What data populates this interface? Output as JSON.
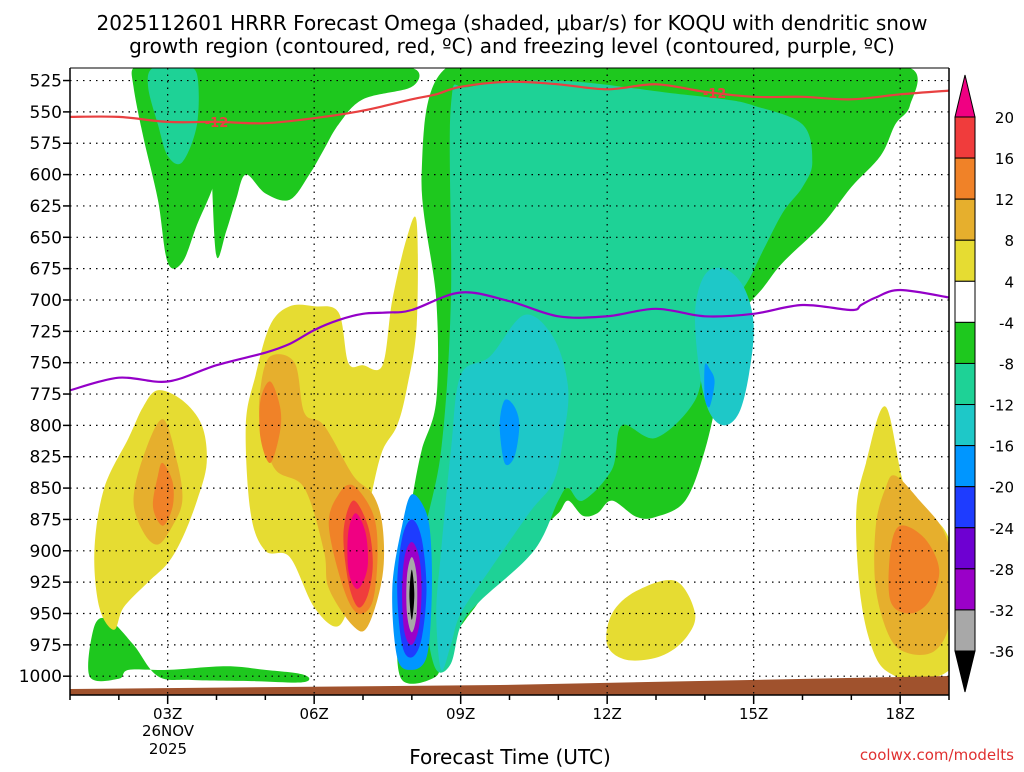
{
  "chart_data": {
    "type": "heatmap",
    "title_line1": "2025112601 HRRR Forecast Omega (shaded, μbar/s) for KOQU with dendritic snow",
    "title_line2": "growth region (contoured, red, ºC) and freezing level (contoured, purple, ºC)",
    "xlabel": "Forecast Time (UTC)",
    "date_label_day": "26NOV",
    "date_label_year": "2025",
    "credit": "coolwx.com/modelts",
    "x_range_hours": [
      1,
      19
    ],
    "x_ticks": [
      {
        "hour": 3,
        "label": "03Z"
      },
      {
        "hour": 6,
        "label": "06Z"
      },
      {
        "hour": 9,
        "label": "09Z"
      },
      {
        "hour": 12,
        "label": "12Z"
      },
      {
        "hour": 15,
        "label": "15Z"
      },
      {
        "hour": 18,
        "label": "18Z"
      }
    ],
    "y_range_hpa": [
      1015,
      515
    ],
    "y_ticks": [
      525,
      550,
      575,
      600,
      625,
      650,
      675,
      700,
      725,
      750,
      775,
      800,
      825,
      850,
      875,
      900,
      925,
      950,
      975,
      1000
    ],
    "colorbar": {
      "levels": [
        -36,
        -32,
        -28,
        -24,
        -20,
        -16,
        -12,
        -8,
        -4,
        4,
        8,
        12,
        16,
        20
      ],
      "colors": [
        "#000000",
        "#a8a8a8",
        "#9a00c8",
        "#6e00d2",
        "#1e3cff",
        "#0096ff",
        "#1ec8c8",
        "#1ed296",
        "#1ec81e",
        "#ffffff",
        "#e6dc32",
        "#e6af2d",
        "#f08228",
        "#f03c3c",
        "#f00082"
      ]
    },
    "series": [
      {
        "name": "freezing level 0ºC",
        "color": "#9400c8",
        "x": [
          1,
          2,
          3,
          4,
          5,
          5.5,
          6,
          6.5,
          7,
          7.5,
          8,
          9,
          10,
          11,
          12,
          13,
          14,
          15,
          16,
          17,
          17.2,
          17.5,
          18,
          19
        ],
        "p": [
          772,
          762,
          765,
          752,
          742,
          735,
          724,
          716,
          711,
          710,
          708,
          694,
          701,
          713,
          713,
          707,
          713,
          711,
          704,
          708,
          704,
          698,
          692,
          698
        ]
      },
      {
        "name": "dendritic growth -12ºC",
        "color": "#e84040",
        "label": "-12",
        "label_hour": 4.0,
        "label_hour_2": 14.2,
        "x": [
          1,
          2,
          3,
          4,
          5,
          6,
          7,
          8,
          8.5,
          9,
          10,
          11,
          12,
          13,
          14,
          15,
          16,
          17,
          18,
          19
        ],
        "p": [
          554,
          554,
          558,
          558,
          559,
          555,
          549,
          540,
          536,
          530,
          526,
          528,
          532,
          528,
          534,
          538,
          538,
          540,
          536,
          533
        ]
      }
    ],
    "regions": [
      {
        "name": "ascent-green-left",
        "level": -4,
        "hours": [
          2.3,
          2.7,
          3.0,
          3.3,
          3.5,
          3.8,
          4.0,
          4.1,
          4.0,
          3.6,
          3.3,
          3.0,
          2.8,
          2.5,
          2.3
        ],
        "pressures": [
          515,
          515,
          515,
          515,
          515,
          515,
          515,
          550,
          600,
          640,
          670,
          670,
          620,
          570,
          530
        ]
      },
      {
        "name": "ascent-green-top",
        "level": -4,
        "hours": [
          3.8,
          6.5,
          8.0,
          8.0,
          7.0,
          6.5,
          6.2,
          5.9,
          5.5,
          5.0,
          4.6,
          4.4,
          4.2,
          4.0,
          3.9
        ],
        "pressures": [
          515,
          515,
          515,
          530,
          540,
          560,
          580,
          600,
          620,
          615,
          600,
          620,
          645,
          665,
          600
        ]
      },
      {
        "name": "ascent-green-main",
        "level": -4,
        "hours": [
          8.7,
          11.0,
          13.5,
          16.2,
          18.2,
          18.2,
          17.9,
          17.6,
          17.0,
          16.4,
          15.6,
          15.2,
          14.6,
          14.3,
          14.0,
          13.6,
          13.0,
          12.6,
          12.1,
          11.8,
          11.5,
          11.2,
          11.0,
          10.6,
          9.8,
          9.5,
          9.1,
          8.6,
          8.5,
          7.8,
          7.7,
          7.8,
          8.0,
          8.2,
          8.5,
          8.5,
          8.2
        ],
        "pressures": [
          515,
          515,
          515,
          515,
          515,
          545,
          560,
          585,
          610,
          640,
          670,
          690,
          720,
          770,
          820,
          860,
          873,
          873,
          860,
          870,
          872,
          860,
          870,
          880,
          880,
          930,
          955,
          980,
          1000,
          1003,
          960,
          910,
          860,
          820,
          780,
          700,
          600
        ]
      },
      {
        "name": "ascent-green-bottom",
        "level": -4,
        "hours": [
          2.2,
          3.0,
          4.2,
          5.0,
          5.7,
          5.9,
          5.7,
          4.8,
          3.5,
          2.8,
          2.3,
          1.8,
          1.5,
          1.4,
          2.0
        ],
        "pressures": [
          995,
          995,
          992,
          995,
          998,
          1002,
          1005,
          1004,
          1003,
          1000,
          975,
          955,
          960,
          1000,
          1002
        ]
      },
      {
        "name": "ascent-teal-main",
        "level": -8,
        "hours": [
          8.8,
          9.2,
          11.0,
          13.3,
          14.4,
          15.0,
          16.0,
          16.2,
          16.0,
          15.6,
          15.2,
          14.8,
          14.2,
          14.0,
          13.8,
          13.0,
          12.3,
          12.1,
          11.5,
          11.2,
          11.0,
          10.5,
          9.4,
          9.0,
          8.8,
          8.5,
          8.3,
          8.2,
          8.6,
          8.8
        ],
        "pressures": [
          545,
          530,
          525,
          535,
          540,
          545,
          560,
          590,
          610,
          630,
          660,
          690,
          715,
          740,
          780,
          810,
          800,
          835,
          860,
          850,
          860,
          900,
          940,
          960,
          990,
          995,
          960,
          900,
          820,
          700
        ]
      },
      {
        "name": "ascent-teal-upper-left",
        "level": -8,
        "hours": [
          2.7,
          3.3,
          3.6,
          3.6,
          3.3,
          3.0,
          2.8,
          2.6
        ],
        "pressures": [
          515,
          515,
          520,
          560,
          590,
          585,
          560,
          530
        ]
      },
      {
        "name": "ascent-cyan-core",
        "level": -12,
        "hours": [
          9.0,
          9.6,
          10.3,
          10.9,
          11.2,
          11.1,
          10.9,
          10.4,
          9.6,
          9.0,
          8.8,
          8.6,
          8.5,
          8.6,
          8.8
        ],
        "pressures": [
          760,
          745,
          712,
          730,
          770,
          810,
          845,
          870,
          915,
          950,
          975,
          995,
          950,
          900,
          820
        ]
      },
      {
        "name": "ascent-cyan-right",
        "level": -12,
        "hours": [
          14.0,
          14.4,
          14.8,
          15.0,
          14.9,
          14.7,
          14.4,
          14.1,
          13.9,
          13.8
        ],
        "pressures": [
          680,
          675,
          690,
          720,
          760,
          790,
          800,
          790,
          760,
          710
        ]
      },
      {
        "name": "ascent-blue-core",
        "level": -16,
        "hours": [
          8.0,
          8.3,
          8.4,
          8.4,
          8.3,
          8.0,
          7.7,
          7.6,
          7.8
        ],
        "pressures": [
          855,
          870,
          900,
          945,
          985,
          995,
          985,
          930,
          880
        ]
      },
      {
        "name": "ascent-blue-small",
        "level": -16,
        "hours": [
          9.9,
          10.1,
          10.2,
          10.1,
          9.9,
          9.8
        ],
        "pressures": [
          780,
          785,
          800,
          825,
          830,
          800
        ]
      },
      {
        "name": "ascent-blue-small-right",
        "level": -16,
        "hours": [
          14.0,
          14.1,
          14.2,
          14.1,
          14.0
        ],
        "pressures": [
          752,
          755,
          765,
          785,
          778
        ]
      },
      {
        "name": "ascent-navy-core",
        "level": -20,
        "hours": [
          8.0,
          8.2,
          8.3,
          8.2,
          8.0,
          7.8,
          7.7,
          7.8
        ],
        "pressures": [
          875,
          890,
          930,
          970,
          985,
          975,
          930,
          890
        ]
      },
      {
        "name": "ascent-violet-core",
        "level": -28,
        "hours": [
          8.0,
          8.15,
          8.2,
          8.15,
          8.0,
          7.85,
          7.8,
          7.85
        ],
        "pressures": [
          893,
          905,
          930,
          960,
          975,
          965,
          935,
          905
        ]
      },
      {
        "name": "ascent-gray-core",
        "level": -32,
        "hours": [
          8.0,
          8.1,
          8.1,
          8.0,
          7.9,
          7.9
        ],
        "pressures": [
          905,
          920,
          950,
          965,
          950,
          920
        ]
      },
      {
        "name": "ascent-black-core",
        "level": -36,
        "hours": [
          8.0,
          8.05,
          8.0,
          7.95
        ],
        "pressures": [
          915,
          935,
          955,
          935
        ]
      },
      {
        "name": "descent-yellow-a",
        "level": 4,
        "hours": [
          2.8,
          3.3,
          3.7,
          3.8,
          3.6,
          3.3,
          3.0,
          2.6,
          2.1,
          1.9,
          1.6,
          1.5,
          1.7,
          2.2,
          2.5
        ],
        "pressures": [
          772,
          780,
          800,
          830,
          860,
          890,
          910,
          925,
          945,
          963,
          945,
          900,
          850,
          810,
          785
        ]
      },
      {
        "name": "descent-yellow-b",
        "level": 4,
        "hours": [
          6.0,
          6.5,
          6.7,
          7.0,
          7.4,
          7.6,
          7.9,
          8.1,
          8.1,
          7.9,
          7.7,
          7.4,
          7.2,
          7.0,
          6.8,
          6.5,
          6.0,
          5.5,
          5.0,
          4.7,
          4.6,
          4.8,
          5.1,
          5.5
        ],
        "pressures": [
          705,
          710,
          750,
          752,
          752,
          700,
          650,
          638,
          720,
          770,
          800,
          820,
          850,
          890,
          930,
          960,
          945,
          905,
          900,
          870,
          800,
          760,
          720,
          705
        ]
      },
      {
        "name": "descent-yellow-c",
        "level": 4,
        "hours": [
          12.6,
          13.4,
          13.8,
          13.6,
          13.1,
          12.4,
          12.0,
          12.1
        ],
        "pressures": [
          932,
          924,
          950,
          970,
          984,
          987,
          975,
          950
        ]
      },
      {
        "name": "descent-yellow-d",
        "level": 4,
        "hours": [
          17.7,
          18.1,
          18.6,
          19.0,
          19.2,
          19.2,
          18.9,
          18.3,
          17.9,
          17.5,
          17.2,
          17.1,
          17.3
        ],
        "pressures": [
          785,
          850,
          870,
          890,
          930,
          980,
          998,
          1002,
          1000,
          985,
          940,
          870,
          830
        ]
      },
      {
        "name": "descent-orange-a",
        "level": 8,
        "hours": [
          2.9,
          3.2,
          3.3,
          3.1,
          2.8,
          2.5,
          2.3,
          2.5
        ],
        "pressures": [
          795,
          830,
          860,
          880,
          895,
          885,
          860,
          825
        ]
      },
      {
        "name": "descent-orange-b",
        "level": 8,
        "hours": [
          5.1,
          5.6,
          5.8,
          6.2,
          6.8,
          7.2,
          7.4,
          7.4,
          7.1,
          6.8,
          6.3,
          6.2,
          5.8,
          5.2,
          4.9,
          4.9
        ],
        "pressures": [
          745,
          750,
          790,
          800,
          840,
          855,
          880,
          920,
          960,
          960,
          930,
          900,
          850,
          835,
          800,
          770
        ]
      },
      {
        "name": "descent-orange-d",
        "level": 8,
        "hours": [
          17.9,
          18.4,
          18.9,
          19.1,
          19.0,
          18.7,
          18.2,
          17.8,
          17.5,
          17.5,
          17.7
        ],
        "pressures": [
          840,
          860,
          885,
          920,
          960,
          980,
          982,
          970,
          930,
          880,
          850
        ]
      },
      {
        "name": "descent-amber-a",
        "level": 12,
        "hours": [
          2.9,
          3.1,
          3.1,
          2.9,
          2.7,
          2.8
        ],
        "pressures": [
          830,
          845,
          865,
          880,
          865,
          840
        ]
      },
      {
        "name": "descent-amber-b",
        "level": 12,
        "hours": [
          5.1,
          5.3,
          5.3,
          5.1,
          4.9,
          4.9
        ],
        "pressures": [
          765,
          785,
          805,
          830,
          810,
          780
        ]
      },
      {
        "name": "descent-amber-b2",
        "level": 12,
        "hours": [
          6.8,
          7.2,
          7.3,
          7.2,
          6.9,
          6.6,
          6.3,
          6.5
        ],
        "pressures": [
          848,
          870,
          900,
          940,
          950,
          930,
          880,
          855
        ]
      },
      {
        "name": "descent-amber-d",
        "level": 12,
        "hours": [
          18.0,
          18.5,
          18.8,
          18.6,
          18.2,
          17.8,
          17.8
        ],
        "pressures": [
          880,
          890,
          915,
          940,
          950,
          940,
          900
        ]
      },
      {
        "name": "descent-red-b",
        "level": 16,
        "hours": [
          6.8,
          7.1,
          7.2,
          7.1,
          6.9,
          6.7,
          6.6
        ],
        "pressures": [
          860,
          880,
          910,
          935,
          945,
          925,
          885
        ]
      },
      {
        "name": "descent-pink-b",
        "level": 20,
        "hours": [
          6.85,
          7.05,
          7.1,
          7.0,
          6.85,
          6.7,
          6.7
        ],
        "pressures": [
          870,
          885,
          910,
          925,
          930,
          915,
          885
        ]
      }
    ]
  }
}
